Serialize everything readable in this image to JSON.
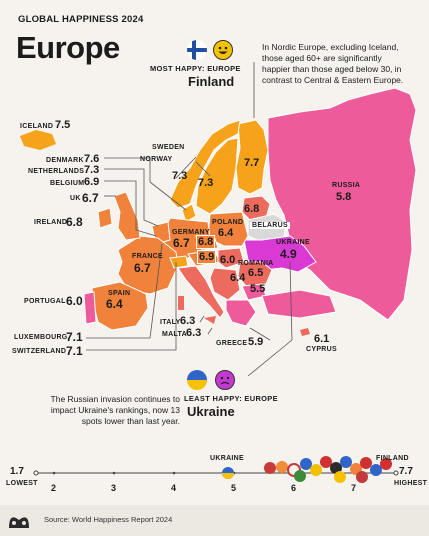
{
  "header": {
    "kicker": "GLOBAL HAPPINESS 2024",
    "title": "Europe",
    "note": "In Nordic Europe, excluding Iceland, those aged 60+ are significantly happier than those aged below 30, in contrast to Central & Eastern Europe."
  },
  "most_happy": {
    "label": "MOST HAPPY: EUROPE",
    "country": "Finland"
  },
  "least_happy": {
    "label": "LEAST HAPPY: EUROPE",
    "country": "Ukraine",
    "note": "The Russian invasion continues to impact Ukraine's rankings, now 13 spots lower than last year."
  },
  "scores": {
    "iceland": {
      "name": "ICELAND",
      "value": "7.5"
    },
    "denmark": {
      "name": "DENMARK",
      "value": "7.6"
    },
    "netherlands": {
      "name": "NETHERLANDS",
      "value": "7.3"
    },
    "belgium": {
      "name": "BELGIUM",
      "value": "6.9"
    },
    "uk": {
      "name": "UK",
      "value": "6.7"
    },
    "ireland": {
      "name": "IRELAND",
      "value": "6.8"
    },
    "portugal": {
      "name": "PORTUGAL",
      "value": "6.0"
    },
    "luxembourg": {
      "name": "LUXEMBOURG",
      "value": "7.1"
    },
    "switzerland": {
      "name": "SWITZERLAND",
      "value": "7.1"
    },
    "sweden": {
      "name": "SWEDEN",
      "value": "7.3"
    },
    "norway": {
      "name": "NORWAY",
      "value": "7.3"
    },
    "finland": {
      "name": "FINLAND",
      "value": "7.7"
    },
    "russia": {
      "name": "RUSSIA",
      "value": "5.8"
    },
    "belarus": {
      "name": "BELARUS"
    },
    "poland": {
      "name": "POLAND",
      "value": "6.4"
    },
    "germany": {
      "name": "GERMANY",
      "value": "6.7"
    },
    "france": {
      "name": "FRANCE",
      "value": "6.7"
    },
    "spain": {
      "name": "SPAIN",
      "value": "6.4"
    },
    "ukraine": {
      "name": "UKRAINE",
      "value": "4.9"
    },
    "romania": {
      "name": "ROMANIA",
      "value": "6.5"
    },
    "italy": {
      "name": "ITALY",
      "value": "6.3"
    },
    "malta": {
      "name": "MALTA",
      "value": "6.3"
    },
    "greece": {
      "name": "GREECE",
      "value": "5.9"
    },
    "cyprus": {
      "name": "CYPRUS",
      "value": "6.1"
    },
    "czechia": {
      "value": "6.8"
    },
    "austria": {
      "value": "6.9"
    },
    "hungary": {
      "value": "6.0"
    },
    "serbia": {
      "value": "6.4"
    },
    "bulgaria": {
      "value": "5.5"
    },
    "baltic": {
      "value": "6.8"
    }
  },
  "scale": {
    "min_value": "1.7",
    "min_label": "LOWEST",
    "max_value": "7.7",
    "max_label": "HIGHEST",
    "ticks": [
      "2",
      "3",
      "4",
      "5",
      "6",
      "7"
    ],
    "ukraine_label": "UKRAINE",
    "finland_label": "FINLAND"
  },
  "source": "Source: World Happiness Report 2024",
  "colors": {
    "background": "#f6f3ee",
    "high": "#f7a21b",
    "mid_high": "#f0823c",
    "mid": "#ec6a5e",
    "low": "#ee5b9b",
    "lowest": "#d93ad4",
    "no_data": "#d9d9d9"
  }
}
